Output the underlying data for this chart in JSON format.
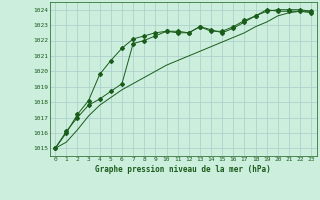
{
  "title": "Graphe pression niveau de la mer (hPa)",
  "background_color": "#cceedd",
  "grid_color": "#aacccc",
  "text_color": "#1a5c1a",
  "line_color": "#1a5c1a",
  "xlim": [
    -0.5,
    23.5
  ],
  "ylim": [
    1014.5,
    1024.5
  ],
  "xticks": [
    0,
    1,
    2,
    3,
    4,
    5,
    6,
    7,
    8,
    9,
    10,
    11,
    12,
    13,
    14,
    15,
    16,
    17,
    18,
    19,
    20,
    21,
    22,
    23
  ],
  "yticks": [
    1015,
    1016,
    1017,
    1018,
    1019,
    1020,
    1021,
    1022,
    1023,
    1024
  ],
  "series1_x": [
    0,
    1,
    2,
    3,
    4,
    5,
    6,
    7,
    8,
    9,
    10,
    11,
    12,
    13,
    14,
    15,
    16,
    17,
    18,
    19,
    20,
    21,
    22,
    23
  ],
  "series1_y": [
    1015.0,
    1016.1,
    1017.0,
    1017.8,
    1018.2,
    1018.7,
    1019.2,
    1021.8,
    1022.0,
    1022.3,
    1022.6,
    1022.6,
    1022.5,
    1022.9,
    1022.7,
    1022.5,
    1022.8,
    1023.2,
    1023.6,
    1024.0,
    1023.9,
    1023.9,
    1023.9,
    1023.8
  ],
  "series2_x": [
    0,
    1,
    2,
    3,
    4,
    5,
    6,
    7,
    8,
    9,
    10,
    11,
    12,
    13,
    14,
    15,
    16,
    17,
    18,
    19,
    20,
    21,
    22,
    23
  ],
  "series2_y": [
    1015.0,
    1016.0,
    1017.2,
    1018.1,
    1019.8,
    1020.7,
    1021.5,
    1022.1,
    1022.3,
    1022.5,
    1022.6,
    1022.5,
    1022.5,
    1022.9,
    1022.6,
    1022.6,
    1022.9,
    1023.3,
    1023.6,
    1023.9,
    1024.0,
    1024.0,
    1024.0,
    1023.9
  ],
  "series3_x": [
    0,
    1,
    2,
    3,
    4,
    5,
    6,
    7,
    8,
    9,
    10,
    11,
    12,
    13,
    14,
    15,
    16,
    17,
    18,
    19,
    20,
    21,
    22,
    23
  ],
  "series3_y": [
    1015.0,
    1015.4,
    1016.2,
    1017.1,
    1017.8,
    1018.3,
    1018.8,
    1019.2,
    1019.6,
    1020.0,
    1020.4,
    1020.7,
    1021.0,
    1021.3,
    1021.6,
    1021.9,
    1022.2,
    1022.5,
    1022.9,
    1023.2,
    1023.6,
    1023.8,
    1023.9,
    1023.9
  ]
}
